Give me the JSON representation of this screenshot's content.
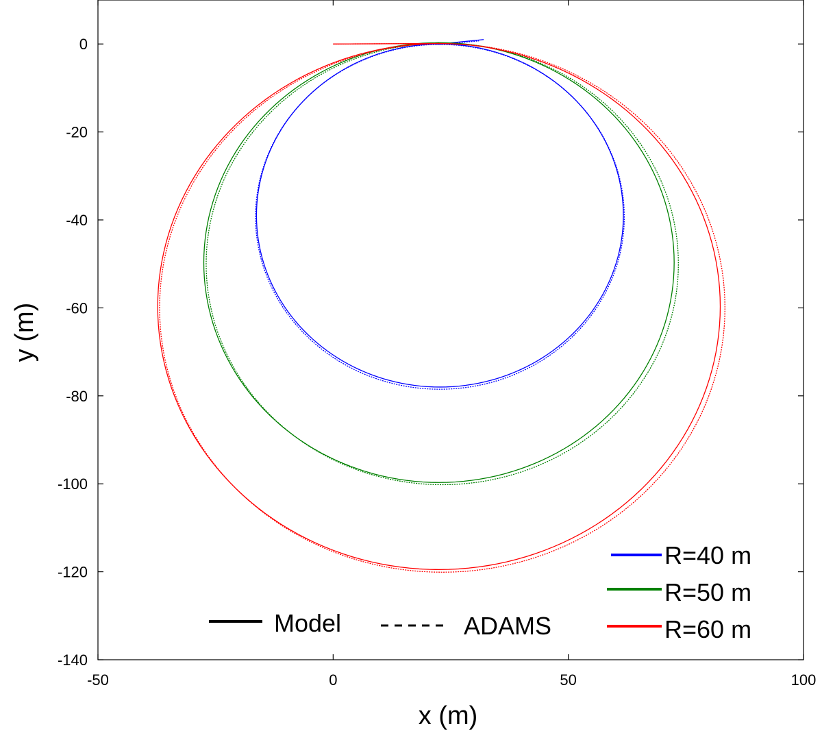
{
  "chart_data": {
    "type": "line",
    "xlabel": "x (m)",
    "ylabel": "y (m)",
    "xlim": [
      -50,
      100
    ],
    "ylim": [
      -140,
      10
    ],
    "xticks": [
      -50,
      0,
      50,
      100
    ],
    "yticks": [
      0,
      -20,
      -40,
      -60,
      -80,
      -100,
      -120,
      -140
    ],
    "grid": false,
    "series": [
      {
        "name": "R=40 m",
        "color": "#0000ff",
        "model": {
          "cx": 22.7,
          "cy": -39,
          "r": 39,
          "x0": 21.0,
          "x_end": 32.0,
          "y_end": 1.0
        },
        "adams": {
          "cx": 22.7,
          "cy": -39.3,
          "r": 39.2,
          "x0": 21.0,
          "x_end": 31.0,
          "y_end": 0.7
        }
      },
      {
        "name": "R=50 m",
        "color": "#008000",
        "model": {
          "cx": 22.5,
          "cy": -49.7,
          "r": 50,
          "x0": 16.0
        },
        "adams": {
          "cx": 23.2,
          "cy": -50.0,
          "r": 50.2,
          "x0": 16.0
        }
      },
      {
        "name": "R=60 m",
        "color": "#ff0000",
        "model": {
          "cx": 22.5,
          "cy": -59.7,
          "r": 59.8,
          "x0": 0.0
        },
        "adams": {
          "cx": 23.2,
          "cy": -60.0,
          "r": 60.1,
          "x0": 0.0
        }
      }
    ],
    "line_styles": [
      {
        "label": "Model",
        "dash": "solid"
      },
      {
        "label": "ADAMS",
        "dash": "dashed"
      }
    ],
    "legend": {
      "position": "bottom-right"
    },
    "style_legend": {
      "position": "bottom-center"
    }
  }
}
